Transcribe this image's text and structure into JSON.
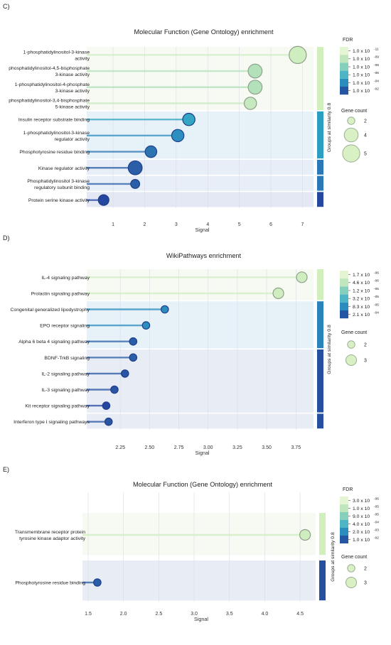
{
  "chart_data": [
    {
      "panel_label": "C)",
      "type": "lollipop",
      "title": "Molecular Function (Gene Ontology) enrichment",
      "xlabel": "Signal",
      "xlim": [
        0.3,
        7.35
      ],
      "xticks": [
        "1",
        "2",
        "3",
        "4",
        "5",
        "6",
        "7"
      ],
      "xtick_values": [
        1,
        2,
        3,
        4,
        5,
        6,
        7
      ],
      "grid": true,
      "group_axis_label": "Groups at similarity 0.8",
      "rows": [
        {
          "label": [
            "1-phosphatidylinositol-3-kinase",
            "activity"
          ],
          "signal": 6.85,
          "gene_count": 5,
          "color": "#cfeec0",
          "group": 0
        },
        {
          "label": [
            "phosphatidylinositol-4,5-bisphosphate",
            "3-kinase activity"
          ],
          "signal": 5.5,
          "gene_count": 4,
          "color": "#b2e1ba",
          "group": 0
        },
        {
          "label": [
            "1-phosphatidylinositol-4-phosphate",
            "3-kinase activity"
          ],
          "signal": 5.5,
          "gene_count": 4,
          "color": "#b2e1ba",
          "group": 0
        },
        {
          "label": [
            "phosphatidylinositol-3,4-bisphosphate",
            "5-kinase activity"
          ],
          "signal": 5.35,
          "gene_count": 3.5,
          "color": "#c7e9c0",
          "group": 0
        },
        {
          "label": [
            "Insulin receptor substrate binding"
          ],
          "signal": 3.4,
          "gene_count": 3.5,
          "color": "#35a5c4",
          "group": 1
        },
        {
          "label": [
            "1-phosphatidylinositol-3-kinase",
            "regulator activity"
          ],
          "signal": 3.05,
          "gene_count": 3.5,
          "color": "#2c8fc0",
          "group": 1
        },
        {
          "label": [
            "Phosphotyrosine residue binding"
          ],
          "signal": 2.2,
          "gene_count": 3.3,
          "color": "#2a74b0",
          "group": 1
        },
        {
          "label": [
            "Kinase regulator activity"
          ],
          "signal": 1.7,
          "gene_count": 4,
          "color": "#2a5fa8",
          "group": 2
        },
        {
          "label": [
            "Phosphatidylinositol 3-kinase",
            "regulatory subunit binding"
          ],
          "signal": 1.7,
          "gene_count": 2.5,
          "color": "#2a5fa8",
          "group": 3
        },
        {
          "label": [
            "Protein serine kinase activity"
          ],
          "signal": 0.7,
          "gene_count": 3,
          "color": "#2547a0",
          "group": 4
        }
      ],
      "groups": [
        {
          "rows": [
            0,
            3
          ],
          "band": "#f6faf3",
          "bar": "#d0efba"
        },
        {
          "rows": [
            4,
            6
          ],
          "band": "#e6f1f8",
          "bar": "#2b9fc2"
        },
        {
          "rows": [
            7,
            7
          ],
          "band": "#e8eef7",
          "bar": "#2a78b8"
        },
        {
          "rows": [
            8,
            8
          ],
          "band": "#e8eef7",
          "bar": "#2a78b8"
        },
        {
          "rows": [
            9,
            9
          ],
          "band": "#e4e8f4",
          "bar": "#2547a0"
        }
      ],
      "fdr_legend": {
        "title": "FDR",
        "labels": [
          "1.0 x 10",
          "1.0 x 10",
          "1.0 x 10",
          "1.0 x 10",
          "1.0 x 10",
          "1.0 x 10"
        ],
        "exponents": [
          "-11",
          "-09",
          "-08",
          "-06",
          "-04",
          "-02"
        ],
        "colors": [
          "#e3f5d2",
          "#bfe6bd",
          "#86cfbc",
          "#4eb5c7",
          "#2b8cbe",
          "#2456a4"
        ]
      },
      "gene_count_legend": {
        "title": "Gene count",
        "values": [
          "2",
          "4",
          "5"
        ],
        "numeric": [
          2,
          4,
          5
        ]
      }
    },
    {
      "panel_label": "D)",
      "type": "lollipop",
      "title": "WikiPathways enrichment",
      "xlabel": "Signal",
      "xlim": [
        2.0,
        3.9
      ],
      "xticks": [
        "2.25",
        "2.50",
        "2.75",
        "3.00",
        "3.25",
        "3.50",
        "3.75"
      ],
      "xtick_values": [
        2.25,
        2.5,
        2.75,
        3.0,
        3.25,
        3.5,
        3.75
      ],
      "grid": true,
      "group_axis_label": "Groups at similarity 0.8",
      "rows": [
        {
          "label": [
            "IL-4 signaling pathway"
          ],
          "signal": 3.8,
          "gene_count": 3,
          "color": "#cfeec0",
          "group": 0
        },
        {
          "label": [
            "Prolactin signaling pathway"
          ],
          "signal": 3.6,
          "gene_count": 3,
          "color": "#cfeec0",
          "group": 0
        },
        {
          "label": [
            "Congenital generalized lipodystrophy"
          ],
          "signal": 2.63,
          "gene_count": 2,
          "color": "#2b8cbe",
          "group": 1
        },
        {
          "label": [
            "EPO receptor signaling"
          ],
          "signal": 2.47,
          "gene_count": 2,
          "color": "#2b8cbe",
          "group": 1
        },
        {
          "label": [
            "Alpha 6 beta 4 signaling pathway"
          ],
          "signal": 2.36,
          "gene_count": 2,
          "color": "#2a5fa8",
          "group": 1
        },
        {
          "label": [
            "BDNF-TrkB signaling"
          ],
          "signal": 2.36,
          "gene_count": 2,
          "color": "#2a5fa8",
          "group": 2
        },
        {
          "label": [
            "IL-2 signaling pathway"
          ],
          "signal": 2.29,
          "gene_count": 2,
          "color": "#2a54a4",
          "group": 2
        },
        {
          "label": [
            "IL-3 signaling pathway"
          ],
          "signal": 2.2,
          "gene_count": 2,
          "color": "#2a54a4",
          "group": 2
        },
        {
          "label": [
            "Kit receptor signaling pathway"
          ],
          "signal": 2.13,
          "gene_count": 2,
          "color": "#2547a0",
          "group": 2
        },
        {
          "label": [
            "Interferon type I signaling pathways"
          ],
          "signal": 2.15,
          "gene_count": 2,
          "color": "#2a54a4",
          "group": 3
        }
      ],
      "groups": [
        {
          "rows": [
            0,
            1
          ],
          "band": "#f6faf3",
          "bar": "#d0efba"
        },
        {
          "rows": [
            2,
            4
          ],
          "band": "#e6f1f8",
          "bar": "#2b83bc"
        },
        {
          "rows": [
            5,
            8
          ],
          "band": "#e8ecf5",
          "bar": "#2550a2"
        },
        {
          "rows": [
            9,
            9
          ],
          "band": "#e8ecf5",
          "bar": "#2550a2"
        }
      ],
      "fdr_legend": {
        "title": "",
        "labels": [
          "1.7 x 10",
          "4.6 x 10",
          "1.2 x 10",
          "3.2 x 10",
          "8.3 x 10",
          "2.1 x 10"
        ],
        "exponents": [
          "-06",
          "-06",
          "-05",
          "-05",
          "-05",
          "-04"
        ],
        "colors": [
          "#e3f5d2",
          "#bfe6bd",
          "#86cfbc",
          "#4eb5c7",
          "#2b8cbe",
          "#2456a4"
        ]
      },
      "gene_count_legend": {
        "title": "Gene count",
        "values": [
          "2",
          "3"
        ],
        "numeric": [
          2,
          3
        ]
      }
    },
    {
      "panel_label": "E)",
      "type": "lollipop",
      "title": "Molecular Function (Gene Ontology) enrichment",
      "xlabel": "Signal",
      "xlim": [
        1.48,
        4.72
      ],
      "xticks": [
        "1.5",
        "2.0",
        "2.5",
        "3.0",
        "3.5",
        "4.0",
        "4.5"
      ],
      "xtick_values": [
        1.5,
        2.0,
        2.5,
        3.0,
        3.5,
        4.0,
        4.5
      ],
      "grid": true,
      "group_axis_label": "Groups at similarity 0.8",
      "rows": [
        {
          "label": [
            "Transmembrane receptor protein",
            "tyrosine kinase adaptor activity"
          ],
          "signal": 4.57,
          "gene_count": 3,
          "color": "#cfeec0",
          "group": 0
        },
        {
          "label": [
            "Phosphotyrosine residue binding"
          ],
          "signal": 1.63,
          "gene_count": 2,
          "color": "#2a5fa8",
          "group": 1
        }
      ],
      "groups": [
        {
          "rows": [
            0,
            0
          ],
          "band": "#f6faf3",
          "bar": "#d0efba"
        },
        {
          "rows": [
            1,
            1
          ],
          "band": "#e8ecf5",
          "bar": "#2550a2"
        }
      ],
      "fdr_legend": {
        "title": "FDR",
        "labels": [
          "3.0 x 10",
          "1.0 x 10",
          "9.0 x 10",
          "4.0 x 10",
          "2.0 x 10",
          "1.0 x 10"
        ],
        "exponents": [
          "-06",
          "-05",
          "-05",
          "-04",
          "-03",
          "-02"
        ],
        "colors": [
          "#e3f5d2",
          "#bfe6bd",
          "#86cfbc",
          "#4eb5c7",
          "#2b8cbe",
          "#2456a4"
        ]
      },
      "gene_count_legend": {
        "title": "Gene count",
        "values": [
          "2",
          "3"
        ],
        "numeric": [
          2,
          3
        ]
      }
    }
  ]
}
